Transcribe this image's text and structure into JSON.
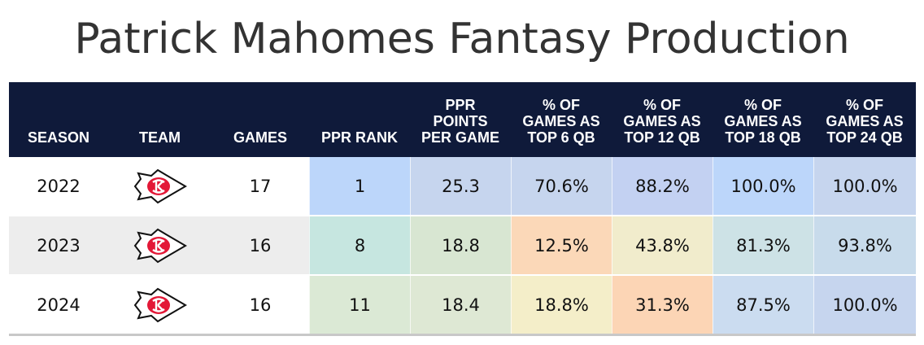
{
  "title": "Patrick Mahomes Fantasy Production",
  "chart_data": {
    "type": "table",
    "title": "Patrick Mahomes Fantasy Production",
    "columns": [
      "SEASON",
      "TEAM",
      "GAMES",
      "PPR RANK",
      "PPR\nPOINTS\nPER GAME",
      "% OF\nGAMES AS\nTOP 6 QB",
      "% OF\nGAMES AS\nTOP 12 QB",
      "% OF\nGAMES AS\nTOP 18 QB",
      "% OF\nGAMES AS\nTOP 24 QB"
    ],
    "rows": [
      {
        "season": "2022",
        "team_icon": "chiefs-logo-icon",
        "games": "17",
        "values": [
          "1",
          "25.3",
          "70.6%",
          "88.2%",
          "100.0%",
          "100.0%"
        ],
        "colors": [
          "#bcd6fa",
          "#c6d5ee",
          "#c6d5ee",
          "#c3d1f2",
          "#bcd6fa",
          "#c6d5ee"
        ]
      },
      {
        "season": "2023",
        "team_icon": "chiefs-logo-icon",
        "games": "16",
        "values": [
          "8",
          "18.8",
          "12.5%",
          "43.8%",
          "81.3%",
          "93.8%"
        ],
        "colors": [
          "#c6e6e0",
          "#d8e6d2",
          "#fbd8b8",
          "#f1eccc",
          "#cde2e6",
          "#c8dbeb"
        ]
      },
      {
        "season": "2024",
        "team_icon": "chiefs-logo-icon",
        "games": "16",
        "values": [
          "11",
          "18.4",
          "18.8%",
          "31.3%",
          "87.5%",
          "100.0%"
        ],
        "colors": [
          "#dbe9d5",
          "#dee8d4",
          "#f4eec9",
          "#fcd5b5",
          "#cbdcf0",
          "#c6d5ee"
        ]
      }
    ],
    "row_backgrounds": [
      "#ffffff",
      "#ededed",
      "#ffffff"
    ],
    "header_color": "#0f1a3a",
    "logo_red": "#e31837"
  }
}
